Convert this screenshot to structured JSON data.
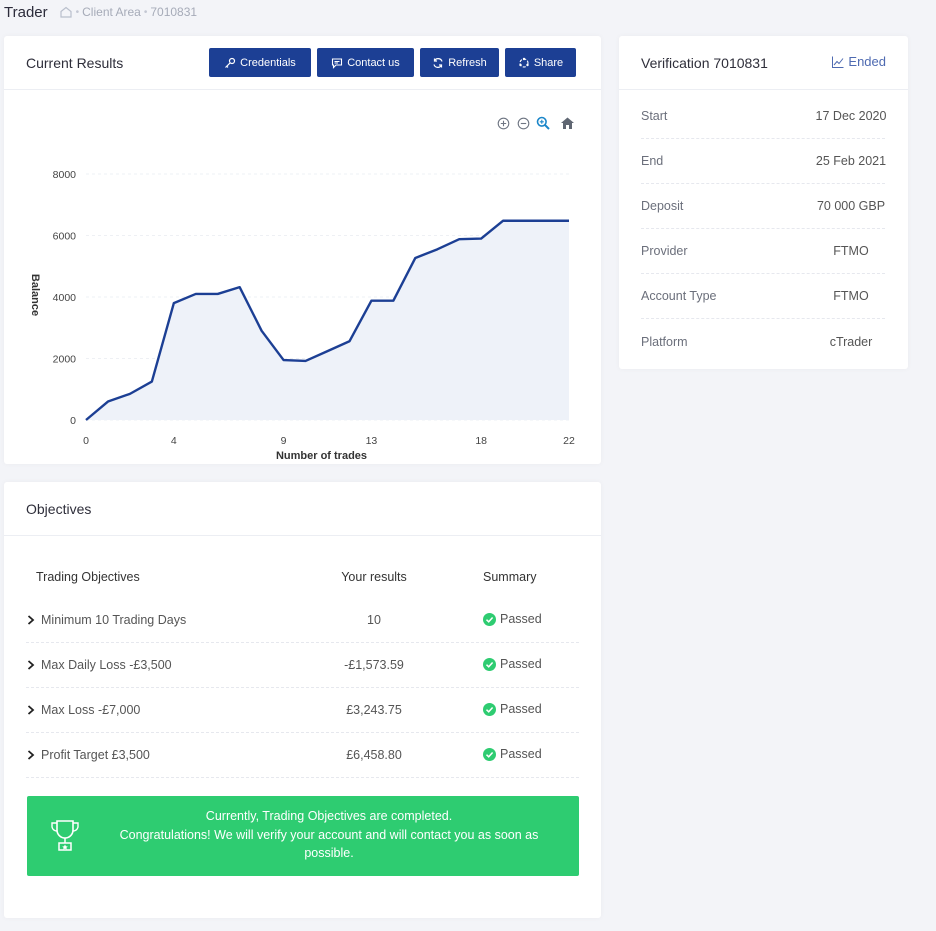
{
  "header": {
    "app_title": "Trader",
    "breadcrumb": [
      "Client Area",
      "7010831"
    ]
  },
  "results": {
    "title": "Current Results",
    "buttons": {
      "credentials": "Credentials",
      "contact": "Contact us",
      "refresh": "Refresh",
      "share": "Share"
    }
  },
  "chart_data": {
    "type": "area",
    "title": "",
    "xlabel": "Number of trades",
    "ylabel": "Balance",
    "xlim": [
      0,
      22
    ],
    "ylim": [
      0,
      8000
    ],
    "x_ticks": [
      0,
      4,
      9,
      13,
      18,
      22
    ],
    "y_ticks": [
      0,
      2000,
      4000,
      6000,
      8000
    ],
    "x": [
      0,
      1,
      2,
      3,
      4,
      5,
      6,
      7,
      8,
      9,
      10,
      11,
      12,
      13,
      14,
      15,
      16,
      17,
      18,
      19,
      20,
      21,
      22
    ],
    "values": [
      0,
      600,
      850,
      1250,
      3800,
      4100,
      4100,
      4320,
      2900,
      1950,
      1920,
      2240,
      2560,
      3880,
      3880,
      5270,
      5550,
      5880,
      5900,
      6480,
      6480,
      6480,
      6480
    ],
    "line_color": "#1c3f94",
    "fill_color": "#eef2f9",
    "grid": true
  },
  "verification": {
    "title": "Verification 7010831",
    "status": "Ended",
    "rows": [
      {
        "label": "Start",
        "value": "17 Dec 2020"
      },
      {
        "label": "End",
        "value": "25 Feb 2021"
      },
      {
        "label": "Deposit",
        "value": "70 000 GBP"
      },
      {
        "label": "Provider",
        "value": "FTMO"
      },
      {
        "label": "Account Type",
        "value": "FTMO"
      },
      {
        "label": "Platform",
        "value": "cTrader"
      }
    ]
  },
  "objectives": {
    "title": "Objectives",
    "columns": {
      "objective": "Trading Objectives",
      "results": "Your results",
      "summary": "Summary"
    },
    "rows": [
      {
        "name": "Minimum 10 Trading Days",
        "result": "10",
        "summary": "Passed"
      },
      {
        "name": "Max Daily Loss -£3,500",
        "result": "-£1,573.59",
        "summary": "Passed"
      },
      {
        "name": "Max Loss -£7,000",
        "result": "£3,243.75",
        "summary": "Passed"
      },
      {
        "name": "Profit Target £3,500",
        "result": "£6,458.80",
        "summary": "Passed"
      }
    ],
    "success_line1": "Currently, Trading Objectives are completed.",
    "success_line2": "Congratulations! We will verify your account and will contact you as soon as possible."
  },
  "colors": {
    "primary": "#1c3f94",
    "success": "#2ecc71",
    "link": "#4e6ab1"
  }
}
